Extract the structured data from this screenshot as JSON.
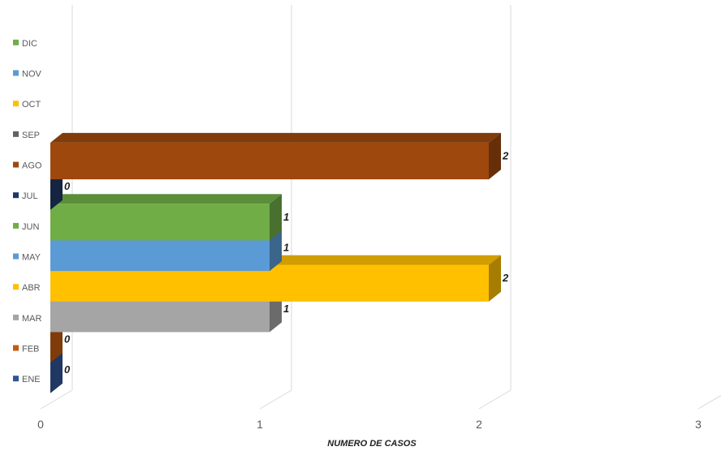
{
  "chart_data": {
    "type": "bar",
    "orientation": "horizontal",
    "style": "3d",
    "categories": [
      "ENE",
      "FEB",
      "MAR",
      "ABR",
      "MAY",
      "JUN",
      "JUL",
      "AGO",
      "SEP",
      "OCT",
      "NOV",
      "DIC"
    ],
    "values": [
      0,
      0,
      1,
      2,
      1,
      1,
      0,
      2,
      null,
      null,
      null,
      null
    ],
    "data_labels": [
      "0",
      "0",
      "1",
      "2",
      "1",
      "1",
      "0",
      "2",
      "",
      "",
      "",
      ""
    ],
    "colors": [
      "#2f5597",
      "#c55a11",
      "#a5a5a5",
      "#ffc000",
      "#5b9bd5",
      "#70ad47",
      "#203864",
      "#9e480e",
      "#636363",
      "#ffc000",
      "#5b9bd5",
      "#70ad47"
    ],
    "xlabel": "NUMERO DE CASOS",
    "ylabel": "",
    "title": "",
    "xlim": [
      0,
      3
    ],
    "x_ticks": [
      "0",
      "1",
      "2",
      "3"
    ],
    "grid": true,
    "legend_position": "left"
  }
}
